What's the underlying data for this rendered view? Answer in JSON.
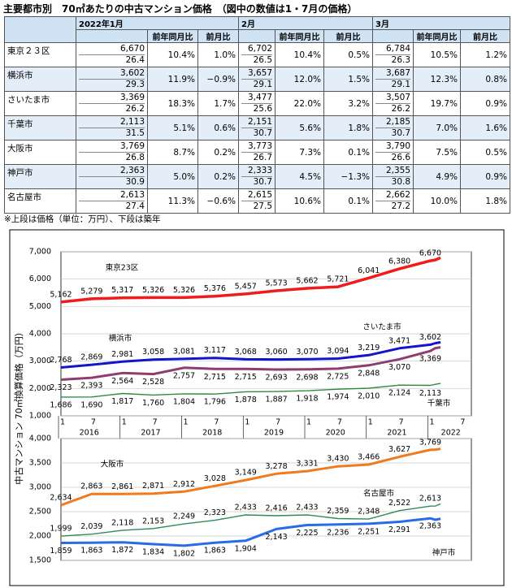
{
  "title": "主要都市別　70㎡あたりの中古マンション価格　（図中の数値は1・7月の価格）",
  "table": {
    "groups": [
      "2022年1月",
      "2月",
      "3月"
    ],
    "subheaders": [
      "前年同月比",
      "前月比",
      "前年同月比",
      "前月比",
      "前年同月比",
      "前月比"
    ],
    "rows": [
      [
        "東京２３区",
        "6,670",
        "26.4",
        "10.4%",
        "1.0%",
        "6,702",
        "26.5",
        "10.4%",
        "0.5%",
        "6,784",
        "26.3",
        "10.5%",
        "1.2%"
      ],
      [
        "横浜市",
        "3,602",
        "29.3",
        "11.9%",
        "−0.9%",
        "3,657",
        "29.1",
        "12.0%",
        "1.5%",
        "3,687",
        "29.1",
        "12.3%",
        "0.8%"
      ],
      [
        "さいたま市",
        "3,369",
        "26.2",
        "18.3%",
        "1.7%",
        "3,477",
        "25.6",
        "22.0%",
        "3.2%",
        "3,507",
        "26.2",
        "19.7%",
        "0.9%"
      ],
      [
        "千葉市",
        "2,113",
        "31.5",
        "5.1%",
        "0.6%",
        "2,151",
        "30.7",
        "5.6%",
        "1.8%",
        "2,185",
        "30.7",
        "7.0%",
        "1.6%"
      ],
      [
        "大阪市",
        "3,769",
        "26.8",
        "8.7%",
        "0.2%",
        "3,773",
        "26.7",
        "7.3%",
        "0.1%",
        "3,790",
        "26.6",
        "7.5%",
        "0.5%"
      ],
      [
        "神戸市",
        "2,363",
        "30.9",
        "5.0%",
        "0.2%",
        "2,333",
        "30.7",
        "4.5%",
        "−1.3%",
        "2,355",
        "30.8",
        "4.9%",
        "0.9%"
      ],
      [
        "名古屋市",
        "2,613",
        "27.4",
        "11.3%",
        "−0.6%",
        "2,615",
        "27.5",
        "10.6%",
        "0.1%",
        "2,662",
        "27.2",
        "10.0%",
        "1.8%"
      ]
    ]
  },
  "note": "※上段は価格（単位：万円）、下段は築年",
  "chart_data": [
    {
      "type": "line",
      "ylabel": "中古マンション 70㎡換算価格（万円）",
      "x": [
        "2016-01",
        "2016-07",
        "2017-01",
        "2017-07",
        "2018-01",
        "2018-07",
        "2019-01",
        "2019-07",
        "2020-01",
        "2020-07",
        "2021-01",
        "2021-07",
        "2022-01",
        "2022-02",
        "2022-03"
      ],
      "xlim": [
        "2016-01",
        "2022-09"
      ],
      "xticks": [
        {
          "value": "2016-01",
          "label": "1"
        },
        {
          "value": "2016-07",
          "label": "7"
        },
        {
          "value": "2017-01",
          "label": "1"
        },
        {
          "value": "2017-07",
          "label": "7"
        },
        {
          "value": "2018-01",
          "label": "1"
        },
        {
          "value": "2018-07",
          "label": "7"
        },
        {
          "value": "2019-01",
          "label": "1"
        },
        {
          "value": "2019-07",
          "label": "7"
        },
        {
          "value": "2020-01",
          "label": "1"
        },
        {
          "value": "2020-07",
          "label": "7"
        },
        {
          "value": "2021-01",
          "label": "1"
        },
        {
          "value": "2021-07",
          "label": "7"
        },
        {
          "value": "2022-01",
          "label": "1"
        },
        {
          "value": "2022-07",
          "label": "7"
        }
      ],
      "year_labels": [
        "2016",
        "2017",
        "2018",
        "2019",
        "2020",
        "2021",
        "2022"
      ],
      "ylim": [
        1000,
        7000
      ],
      "yticks": [
        {
          "value": 1000,
          "label": "1,000"
        },
        {
          "value": 2000,
          "label": "2,000"
        },
        {
          "value": 3000,
          "label": "3,000"
        },
        {
          "value": 4000,
          "label": "4,000"
        },
        {
          "value": 5000,
          "label": "5,000"
        },
        {
          "value": 6000,
          "label": "6,000"
        },
        {
          "value": 7000,
          "label": "7,000"
        }
      ],
      "grid": true,
      "series": [
        {
          "name": "東京23区",
          "color": "#ee1c1c",
          "values": [
            5162,
            5279,
            5317,
            5326,
            5326,
            5376,
            5457,
            5573,
            5662,
            5721,
            6041,
            6380,
            6670,
            6702,
            6784
          ],
          "value_labels": [
            "5,162",
            "5,279",
            "5,317",
            "5,326",
            "5,326",
            "5,376",
            "5,457",
            "5,573",
            "5,662",
            "5,721",
            "6,041",
            "6,380",
            "6,670",
            null,
            null
          ]
        },
        {
          "name": "横浜市",
          "color": "#1414c8",
          "values": [
            2768,
            2869,
            2981,
            3058,
            3081,
            3117,
            3068,
            3060,
            3070,
            3094,
            3219,
            3471,
            3602,
            3657,
            3687
          ],
          "value_labels": [
            "2,768",
            "2,869",
            "2,981",
            "3,058",
            "3,081",
            "3,117",
            "3,068",
            "3,060",
            "3,070",
            "3,094",
            "3,219",
            "3,471",
            "3,602",
            null,
            null
          ]
        },
        {
          "name": "さいたま市",
          "color": "#8e3c72",
          "values": [
            2323,
            2393,
            2564,
            2528,
            2757,
            2715,
            2715,
            2693,
            2698,
            2725,
            2848,
            3070,
            3369,
            3477,
            3507
          ],
          "value_labels": [
            "2,323",
            "2,393",
            "2,564",
            "2,528",
            "2,757",
            "2,715",
            "2,715",
            "2,693",
            "2,698",
            "2,725",
            "2,848",
            "3,070",
            "3,369",
            null,
            null
          ]
        },
        {
          "name": "千葉市",
          "color": "#2e8b3a",
          "values": [
            1686,
            1690,
            1817,
            1760,
            1804,
            1796,
            1878,
            1887,
            1918,
            1974,
            2010,
            2124,
            2113,
            2151,
            2185
          ],
          "value_labels": [
            "1,686",
            "1,690",
            "1,817",
            "1,760",
            "1,804",
            "1,796",
            "1,878",
            "1,887",
            "1,918",
            "1,974",
            "2,010",
            "2,124",
            "2,113",
            null,
            null
          ]
        }
      ]
    },
    {
      "type": "line",
      "x": [
        "2016-01",
        "2016-07",
        "2017-01",
        "2017-07",
        "2018-01",
        "2018-07",
        "2019-01",
        "2019-07",
        "2020-01",
        "2020-07",
        "2021-01",
        "2021-07",
        "2022-01",
        "2022-02",
        "2022-03"
      ],
      "xlim": [
        "2016-01",
        "2022-09"
      ],
      "ylim": [
        1500,
        4000
      ],
      "yticks": [
        {
          "value": 1500,
          "label": "1,500"
        },
        {
          "value": 2000,
          "label": "2,000"
        },
        {
          "value": 2500,
          "label": "2,500"
        },
        {
          "value": 3000,
          "label": "3,000"
        },
        {
          "value": 3500,
          "label": "3,500"
        },
        {
          "value": 4000,
          "label": "4,000"
        }
      ],
      "grid": true,
      "series": [
        {
          "name": "大阪市",
          "color": "#f07a1e",
          "values": [
            2634,
            2863,
            2861,
            2871,
            2912,
            3028,
            3149,
            3278,
            3331,
            3430,
            3466,
            3627,
            3769,
            3773,
            3790
          ],
          "value_labels": [
            "2,634",
            "2,863",
            "2,861",
            "2,871",
            "2,912",
            "3,028",
            "3,149",
            "3,278",
            "3,331",
            "3,430",
            "3,466",
            "3,627",
            "3,769",
            null,
            null
          ]
        },
        {
          "name": "名古屋市",
          "color": "#2e8b57",
          "values": [
            1999,
            2039,
            2118,
            2153,
            2249,
            2323,
            2433,
            2416,
            2433,
            2359,
            2348,
            2522,
            2613,
            2615,
            2662
          ],
          "value_labels": [
            "1,999",
            "2,039",
            "2,118",
            "2,153",
            "2,249",
            "2,323",
            "2,433",
            "2,416",
            "2,433",
            "2,359",
            "2,348",
            "2,522",
            "2,613",
            null,
            null
          ]
        },
        {
          "name": "神戸市",
          "color": "#2a6ae8",
          "values": [
            1859,
            1863,
            1872,
            1834,
            1802,
            1863,
            1904,
            2143,
            2225,
            2236,
            2251,
            2291,
            2363,
            2333,
            2355
          ],
          "value_labels": [
            "1,859",
            "1,863",
            "1,872",
            "1,834",
            "1,802",
            "1,863",
            "1,904",
            "2,143",
            "2,225",
            "2,236",
            "2,251",
            "2,291",
            "2,363",
            null,
            null
          ]
        }
      ]
    }
  ]
}
